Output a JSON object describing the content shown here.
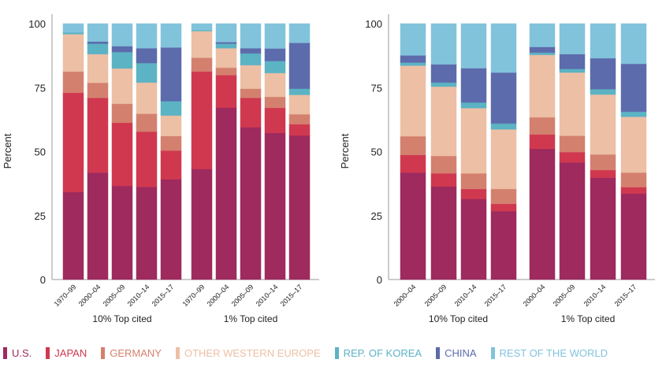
{
  "legend": [
    {
      "label": "U.S.",
      "color": "#9e2a5e"
    },
    {
      "label": "JAPAN",
      "color": "#d0384f"
    },
    {
      "label": "GERMANY",
      "color": "#d4806f"
    },
    {
      "label": "OTHER WESTERN EUROPE",
      "color": "#edbfa5"
    },
    {
      "label": "REP. OF KOREA",
      "color": "#5bb3c4"
    },
    {
      "label": "CHINA",
      "color": "#5c6bab"
    },
    {
      "label": "REST OF THE WORLD",
      "color": "#82c3dc"
    }
  ],
  "chart_data": [
    {
      "type": "bar",
      "stacked": true,
      "ylabel": "Percent",
      "ylim": [
        0,
        100
      ],
      "yticks": [
        "0",
        "25",
        "50",
        "75",
        "100"
      ],
      "groups": [
        {
          "label": "10% Top cited",
          "categories": [
            "1970–99",
            "2000–04",
            "2005–09",
            "2010–14",
            "2015–17"
          ]
        },
        {
          "label": "1% Top cited",
          "categories": [
            "1970–99",
            "2000–04",
            "2005–09",
            "2010–14",
            "2015–17"
          ]
        }
      ],
      "series": [
        {
          "name": "U.S.",
          "values": [
            34.2,
            41.8,
            36.6,
            36.2,
            39.2,
            43.2,
            67.2,
            59.5,
            57.3,
            56.3
          ]
        },
        {
          "name": "JAPAN",
          "values": [
            38.8,
            29.2,
            24.7,
            21.6,
            11.2,
            38.1,
            12.7,
            11.5,
            9.8,
            4.4
          ]
        },
        {
          "name": "GERMANY",
          "values": [
            8.3,
            5.9,
            7.4,
            7.0,
            5.7,
            5.4,
            2.9,
            3.6,
            4.3,
            3.9
          ]
        },
        {
          "name": "OTHER WESTERN EUROPE",
          "values": [
            14.6,
            11.2,
            13.8,
            12.2,
            8.0,
            10.4,
            7.6,
            9.2,
            9.3,
            7.6
          ]
        },
        {
          "name": "REP. OF KOREA",
          "values": [
            0.7,
            4.1,
            6.4,
            7.6,
            5.6,
            0.4,
            1.8,
            4.6,
            4.7,
            2.4
          ]
        },
        {
          "name": "CHINA",
          "values": [
            0,
            0.8,
            2.3,
            5.8,
            21.0,
            0,
            0.6,
            2.0,
            4.9,
            17.9
          ]
        },
        {
          "name": "REST OF THE WORLD",
          "values": [
            3.4,
            7.0,
            8.8,
            9.6,
            9.3,
            2.5,
            7.2,
            9.6,
            9.7,
            7.5
          ]
        }
      ]
    },
    {
      "type": "bar",
      "stacked": true,
      "ylabel": "Percent",
      "ylim": [
        0,
        100
      ],
      "yticks": [
        "0",
        "25",
        "50",
        "75",
        "100"
      ],
      "groups": [
        {
          "label": "10% Top cited",
          "categories": [
            "2000–04",
            "2005–09",
            "2010–14",
            "2015–17"
          ]
        },
        {
          "label": "1% Top cited",
          "categories": [
            "2000–04",
            "2005–09",
            "2010–14",
            "2015–17"
          ]
        }
      ],
      "series": [
        {
          "name": "U.S.",
          "values": [
            41.8,
            36.4,
            31.5,
            26.7,
            51.1,
            45.8,
            39.8,
            33.6
          ]
        },
        {
          "name": "JAPAN",
          "values": [
            6.9,
            5.1,
            3.9,
            2.9,
            5.6,
            4.0,
            3.0,
            2.5
          ]
        },
        {
          "name": "GERMANY",
          "values": [
            7.3,
            6.8,
            6.1,
            5.8,
            6.7,
            6.4,
            6.1,
            5.7
          ]
        },
        {
          "name": "OTHER WESTERN EUROPE",
          "values": [
            27.6,
            27.1,
            25.5,
            23.3,
            24.4,
            24.7,
            23.4,
            21.8
          ]
        },
        {
          "name": "REP. OF KOREA",
          "values": [
            1.2,
            1.6,
            2.2,
            2.3,
            0.9,
            1.4,
            2.1,
            2.0
          ]
        },
        {
          "name": "CHINA",
          "values": [
            2.8,
            7.1,
            13.4,
            19.9,
            2.2,
            5.8,
            12.1,
            18.7
          ]
        },
        {
          "name": "REST OF THE WORLD",
          "values": [
            12.4,
            15.9,
            17.4,
            19.1,
            9.1,
            11.9,
            13.5,
            15.7
          ]
        }
      ]
    }
  ]
}
